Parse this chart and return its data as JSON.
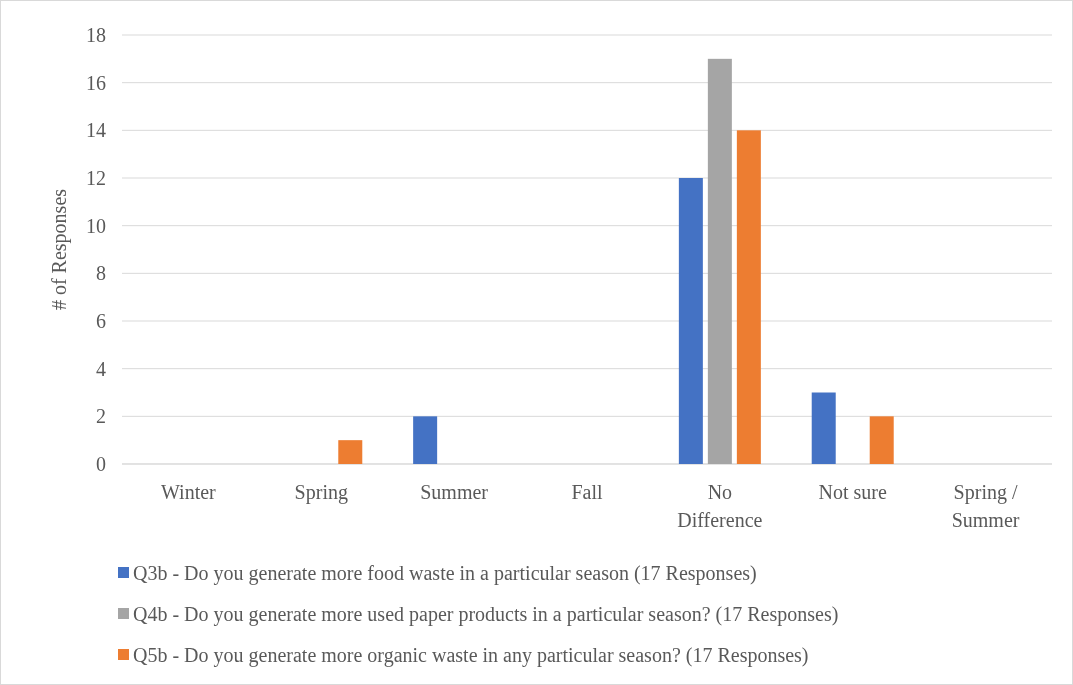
{
  "chart_data": {
    "type": "bar",
    "ylabel": "# of Responses",
    "categories": [
      "Winter",
      "Spring",
      "Summer",
      "Fall",
      "No Difference",
      "Not sure",
      "Spring / Summer"
    ],
    "series": [
      {
        "name": "Q3b - Do you generate more food waste in a particular season (17 Responses)",
        "color": "#4472c4",
        "values": [
          0,
          0,
          2,
          0,
          12,
          3,
          0
        ]
      },
      {
        "name": "Q4b - Do you generate more used paper products in a particular season? (17 Responses)",
        "color": "#a5a5a5",
        "values": [
          0,
          0,
          0,
          0,
          17,
          0,
          0
        ]
      },
      {
        "name": "Q5b - Do you generate more organic waste in any particular season? (17 Responses)",
        "color": "#ed7d31",
        "values": [
          0,
          1,
          0,
          0,
          14,
          2,
          0
        ]
      }
    ],
    "ylim": [
      0,
      18
    ],
    "yticks": [
      0,
      2,
      4,
      6,
      8,
      10,
      12,
      14,
      16,
      18
    ],
    "grid": "y",
    "legend": "bottom"
  }
}
